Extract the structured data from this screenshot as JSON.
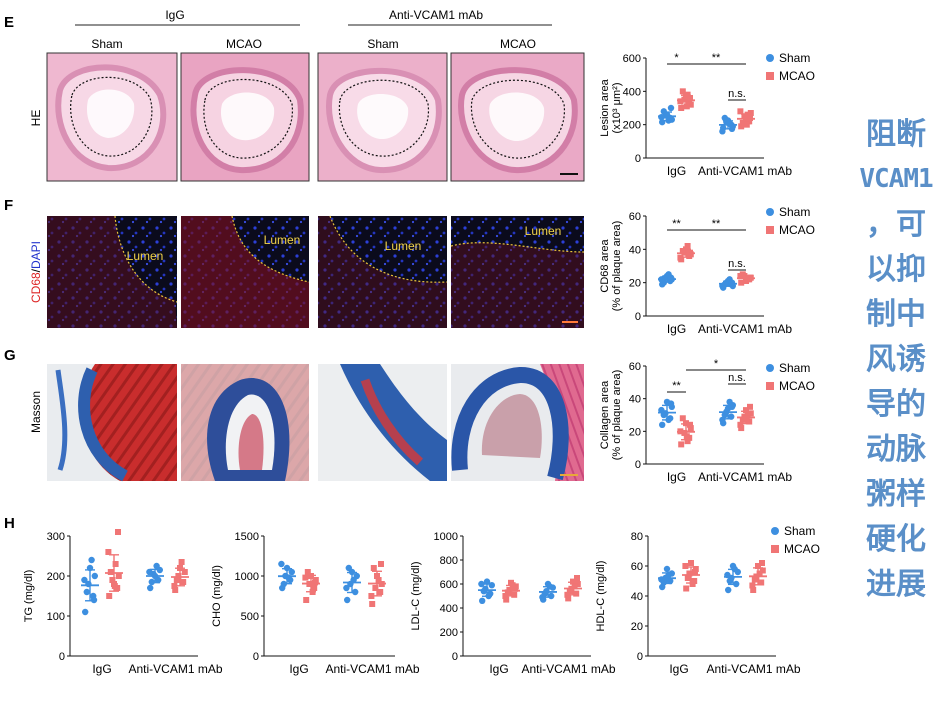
{
  "panel_letters": [
    "E",
    "F",
    "G",
    "H"
  ],
  "groups": {
    "igg": "IgG",
    "anti": "Anti-VCAM1 mAb"
  },
  "conditions": {
    "sham": "Sham",
    "mcao": "MCAO"
  },
  "stain_labels": {
    "he": "HE",
    "cd68": "CD68",
    "slash": "/",
    "dapi": "DAPI",
    "masson": "Masson"
  },
  "lumen_label": "Lumen",
  "legend": {
    "sham": "Sham",
    "mcao": "MCAO"
  },
  "colors": {
    "sham": "#3d8fe0",
    "mcao": "#f07575",
    "lumen_border": "#e8c33a",
    "lumen_text": "#f2d34a",
    "side_text": "#5a8fc8"
  },
  "x_tick_labels": [
    "IgG",
    "Anti-VCAM1 mAb"
  ],
  "side_text": [
    "阻断",
    "VCAM1",
    "，可",
    "以抑",
    "制中",
    "风诱",
    "导的",
    "动脉",
    "粥样",
    "硬化",
    "进展"
  ],
  "chart_data": [
    {
      "id": "E",
      "type": "scatter",
      "ylabel": [
        "Lesion area",
        "(x10³ μm²)"
      ],
      "ylim": [
        0,
        600
      ],
      "yticks": [
        "0",
        "200",
        "400",
        "600"
      ],
      "categories": [
        "IgG",
        "Anti-VCAM1 mAb"
      ],
      "series": [
        {
          "name": "Sham",
          "values": [
            [
              215,
              240,
              255,
              230,
              260,
              280,
              225,
              245,
              300
            ],
            [
              180,
              200,
              215,
              190,
              225,
              240,
              205,
              160,
              175
            ]
          ]
        },
        {
          "name": "MCAO",
          "values": [
            [
              300,
              330,
              350,
              320,
              370,
              400,
              380,
              340,
              360,
              310
            ],
            [
              190,
              220,
              250,
              270,
              230,
              210,
              260,
              280,
              240,
              200
            ]
          ]
        }
      ],
      "annotations": [
        {
          "text": "*",
          "span": "IgG Sham-MCAO"
        },
        {
          "text": "**",
          "span": "IgG MCAO - Anti MCAO"
        },
        {
          "text": "n.s.",
          "span": "Anti Sham-MCAO"
        }
      ]
    },
    {
      "id": "F",
      "type": "scatter",
      "ylabel": [
        "CD68 area",
        "(% of plaque area)"
      ],
      "ylim": [
        0,
        60
      ],
      "yticks": [
        "0",
        "20",
        "40",
        "60"
      ],
      "categories": [
        "IgG",
        "Anti-VCAM1 mAb"
      ],
      "series": [
        {
          "name": "Sham",
          "values": [
            [
              19,
              21,
              23,
              22,
              24,
              20,
              25,
              22,
              23
            ],
            [
              17,
              19,
              20,
              18,
              21,
              19,
              22,
              18,
              20
            ]
          ]
        },
        {
          "name": "MCAO",
          "values": [
            [
              34,
              36,
              38,
              37,
              40,
              39,
              42,
              35,
              38
            ],
            [
              20,
              22,
              24,
              23,
              21,
              25,
              22,
              24,
              23
            ]
          ]
        }
      ],
      "annotations": [
        {
          "text": "**"
        },
        {
          "text": "**"
        },
        {
          "text": "n.s."
        }
      ]
    },
    {
      "id": "G",
      "type": "scatter",
      "ylabel": [
        "Collagen area",
        "(% of plaque area)"
      ],
      "ylim": [
        0,
        60
      ],
      "yticks": [
        "0",
        "20",
        "40",
        "60"
      ],
      "categories": [
        "IgG",
        "Anti-VCAM1 mAb"
      ],
      "series": [
        {
          "name": "Sham",
          "values": [
            [
              24,
              28,
              31,
              35,
              38,
              30,
              27,
              33,
              37
            ],
            [
              25,
              29,
              32,
              36,
              34,
              30,
              38,
              27,
              35
            ]
          ]
        },
        {
          "name": "MCAO",
          "values": [
            [
              12,
              16,
              19,
              22,
              25,
              28,
              14,
              20,
              24,
              17
            ],
            [
              22,
              26,
              29,
              31,
              33,
              27,
              30,
              24,
              35,
              28
            ]
          ]
        }
      ],
      "annotations": [
        {
          "text": "**"
        },
        {
          "text": "*"
        },
        {
          "text": "n.s."
        }
      ]
    },
    {
      "id": "H-TG",
      "type": "scatter",
      "ylabel": [
        "TG (mg/dl)"
      ],
      "ylim": [
        0,
        300
      ],
      "yticks": [
        "0",
        "100",
        "200",
        "300"
      ],
      "categories": [
        "IgG",
        "Anti-VCAM1 mAb"
      ],
      "series": [
        {
          "name": "Sham",
          "values": [
            [
              110,
              150,
              180,
              200,
              220,
              160,
              240,
              190,
              140
            ],
            [
              170,
              190,
              205,
              215,
              200,
              185,
              225,
              210
            ]
          ]
        },
        {
          "name": "MCAO",
          "values": [
            [
              150,
              170,
              190,
              200,
              180,
              210,
              230,
              260,
              310,
              175
            ],
            [
              165,
              185,
              200,
              210,
              220,
              190,
              235,
              175
            ]
          ]
        }
      ],
      "annotations": []
    },
    {
      "id": "H-CHO",
      "type": "scatter",
      "ylabel": [
        "CHO (mg/dl)"
      ],
      "ylim": [
        0,
        1500
      ],
      "yticks": [
        "0",
        "500",
        "1000",
        "1500"
      ],
      "categories": [
        "IgG",
        "Anti-VCAM1 mAb"
      ],
      "series": [
        {
          "name": "Sham",
          "values": [
            [
              850,
              950,
              1000,
              1050,
              1100,
              900,
              980,
              1150
            ],
            [
              700,
              800,
              900,
              1000,
              1050,
              1100,
              950,
              850
            ]
          ]
        },
        {
          "name": "MCAO",
          "values": [
            [
              700,
              850,
              900,
              950,
              1000,
              1050,
              800,
              980,
              920
            ],
            [
              650,
              800,
              850,
              900,
              1000,
              1100,
              950,
              750,
              1150
            ]
          ]
        }
      ],
      "annotations": []
    },
    {
      "id": "H-LDL",
      "type": "scatter",
      "ylabel": [
        "LDL-C (mg/dl)"
      ],
      "ylim": [
        0,
        1000
      ],
      "yticks": [
        "0",
        "200",
        "400",
        "600",
        "800",
        "1000"
      ],
      "categories": [
        "IgG",
        "Anti-VCAM1 mAb"
      ],
      "series": [
        {
          "name": "Sham",
          "values": [
            [
              460,
              520,
              560,
              590,
              620,
              540,
              500,
              600
            ],
            [
              470,
              500,
              540,
              570,
              600,
              520,
              580,
              490
            ]
          ]
        },
        {
          "name": "MCAO",
          "values": [
            [
              470,
              510,
              550,
              580,
              610,
              530,
              590,
              500,
              560
            ],
            [
              480,
              520,
              560,
              600,
              620,
              540,
              580,
              510,
              650
            ]
          ]
        }
      ],
      "annotations": []
    },
    {
      "id": "H-HDL",
      "type": "scatter",
      "ylabel": [
        "HDL-C (mg/dl)"
      ],
      "ylim": [
        0,
        80
      ],
      "yticks": [
        "0",
        "20",
        "40",
        "60",
        "80"
      ],
      "categories": [
        "IgG",
        "Anti-VCAM1 mAb"
      ],
      "series": [
        {
          "name": "Sham",
          "values": [
            [
              46,
              50,
              52,
              55,
              58,
              49,
              54,
              51
            ],
            [
              44,
              48,
              52,
              56,
              60,
              50,
              58,
              54
            ]
          ]
        },
        {
          "name": "MCAO",
          "values": [
            [
              45,
              50,
              55,
              58,
              62,
              52,
              48,
              60,
              56
            ],
            [
              44,
              49,
              53,
              57,
              60,
              51,
              55,
              47,
              62
            ]
          ]
        }
      ],
      "annotations": []
    }
  ]
}
